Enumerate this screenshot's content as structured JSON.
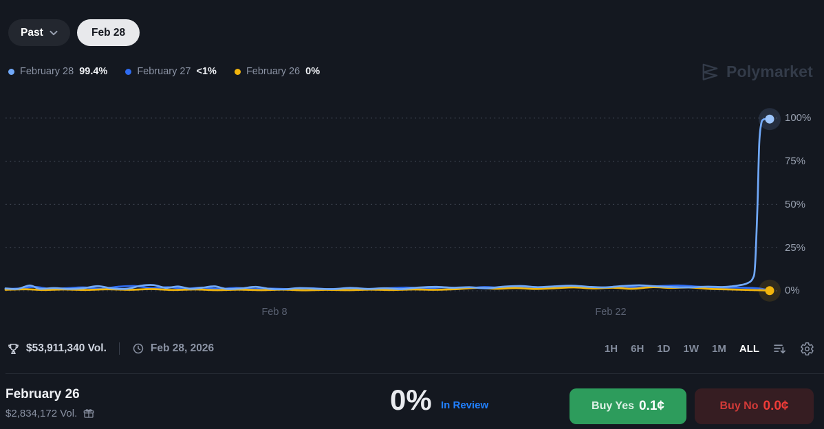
{
  "header": {
    "past_label": "Past",
    "date_pill": "Feb 28"
  },
  "legend": {
    "items": [
      {
        "label": "February 28",
        "value": "99.4%"
      },
      {
        "label": "February 27",
        "value": "<1%"
      },
      {
        "label": "February 26",
        "value": "0%"
      }
    ]
  },
  "watermark": {
    "brand": "Polymarket"
  },
  "chart_data": {
    "type": "line",
    "title": "Outcome probability over time",
    "x_axis": {
      "unit": "date (February day number, ALL range)",
      "domain_days": [
        -2.9,
        28.55
      ],
      "ticks": [
        {
          "day": 8,
          "label": "Feb 8"
        },
        {
          "day": 22,
          "label": "Feb 22"
        }
      ]
    },
    "y_axis": {
      "unit": "%",
      "range": [
        0,
        100
      ],
      "ticks": [
        100,
        75,
        50,
        25,
        0
      ],
      "tick_labels": [
        "100%",
        "75%",
        "50%",
        "25%",
        "0%"
      ],
      "grid": "dotted"
    },
    "legend_position": "top-left",
    "series": [
      {
        "name": "February 28",
        "color": "#70a8f8",
        "marker_color": "#9cc4fb",
        "halo": "rgba(143,184,252,0.14)",
        "final": 99.4,
        "end_marker": true,
        "points": [
          [
            -2.9,
            1.4
          ],
          [
            -2.4,
            1.1
          ],
          [
            -1.9,
            3.1
          ],
          [
            -1.5,
            1.2
          ],
          [
            -0.9,
            1.6
          ],
          [
            -0.3,
            1.1
          ],
          [
            0.3,
            1.5
          ],
          [
            0.9,
            2.7
          ],
          [
            1.5,
            1.4
          ],
          [
            2.1,
            1.2
          ],
          [
            2.7,
            3.0
          ],
          [
            3.2,
            3.3
          ],
          [
            3.7,
            1.7
          ],
          [
            4.2,
            2.5
          ],
          [
            4.7,
            1.2
          ],
          [
            5.2,
            1.8
          ],
          [
            5.7,
            2.6
          ],
          [
            6.2,
            1.1
          ],
          [
            6.8,
            1.4
          ],
          [
            7.4,
            2.3
          ],
          [
            8.0,
            1.1
          ],
          [
            8.6,
            0.9
          ],
          [
            9.2,
            1.6
          ],
          [
            9.9,
            1.2
          ],
          [
            10.6,
            1.0
          ],
          [
            11.3,
            1.7
          ],
          [
            12.0,
            1.1
          ],
          [
            12.7,
            1.5
          ],
          [
            13.4,
            1.0
          ],
          [
            14.1,
            1.9
          ],
          [
            14.8,
            2.3
          ],
          [
            15.5,
            1.8
          ],
          [
            16.2,
            2.1
          ],
          [
            16.9,
            1.5
          ],
          [
            17.6,
            2.4
          ],
          [
            18.3,
            2.8
          ],
          [
            19.0,
            2.1
          ],
          [
            19.7,
            2.6
          ],
          [
            20.4,
            3.0
          ],
          [
            21.1,
            2.3
          ],
          [
            21.8,
            2.0
          ],
          [
            22.5,
            2.8
          ],
          [
            23.2,
            3.2
          ],
          [
            23.9,
            2.6
          ],
          [
            24.6,
            2.1
          ],
          [
            25.3,
            2.0
          ],
          [
            26.0,
            2.4
          ],
          [
            26.6,
            2.2
          ],
          [
            27.0,
            2.6
          ],
          [
            27.3,
            3.2
          ],
          [
            27.6,
            4.2
          ],
          [
            27.85,
            7
          ],
          [
            27.95,
            15
          ],
          [
            28.05,
            50
          ],
          [
            28.12,
            85
          ],
          [
            28.2,
            96.5
          ],
          [
            28.3,
            99.2
          ],
          [
            28.55,
            99.4
          ]
        ]
      },
      {
        "name": "February 27",
        "color": "#2e6bf0",
        "marker_color": "#2e6bf0",
        "halo": "rgba(46,107,240,0.14)",
        "final": 0.4,
        "end_marker": false,
        "points": [
          [
            -2.9,
            1.0
          ],
          [
            -2.3,
            1.4
          ],
          [
            -1.7,
            2.3
          ],
          [
            -1.1,
            1.2
          ],
          [
            -0.4,
            1.5
          ],
          [
            0.3,
            2.0
          ],
          [
            1.0,
            1.2
          ],
          [
            1.7,
            2.3
          ],
          [
            2.4,
            2.8
          ],
          [
            3.1,
            1.6
          ],
          [
            3.8,
            2.1
          ],
          [
            4.5,
            1.2
          ],
          [
            5.2,
            1.9
          ],
          [
            5.9,
            1.1
          ],
          [
            6.6,
            1.7
          ],
          [
            7.3,
            1.0
          ],
          [
            8.0,
            1.3
          ],
          [
            8.8,
            1.0
          ],
          [
            9.6,
            1.5
          ],
          [
            10.4,
            1.0
          ],
          [
            11.2,
            1.3
          ],
          [
            12.0,
            0.9
          ],
          [
            12.8,
            1.5
          ],
          [
            13.6,
            1.9
          ],
          [
            14.4,
            1.5
          ],
          [
            15.2,
            2.0
          ],
          [
            16.0,
            1.4
          ],
          [
            16.8,
            2.2
          ],
          [
            17.6,
            1.7
          ],
          [
            18.4,
            2.4
          ],
          [
            19.2,
            2.0
          ],
          [
            20.0,
            2.7
          ],
          [
            20.8,
            2.2
          ],
          [
            21.6,
            1.8
          ],
          [
            22.4,
            2.5
          ],
          [
            23.2,
            2.0
          ],
          [
            24.0,
            2.7
          ],
          [
            24.8,
            3.1
          ],
          [
            25.6,
            2.4
          ],
          [
            26.4,
            1.9
          ],
          [
            27.1,
            1.9
          ],
          [
            27.7,
            1.7
          ],
          [
            28.1,
            1.4
          ],
          [
            28.35,
            0.8
          ],
          [
            28.55,
            0.4
          ]
        ]
      },
      {
        "name": "February 26",
        "color": "#f2b50d",
        "marker_color": "#f2b50d",
        "halo": "rgba(242,181,13,0.13)",
        "final": 0.0,
        "end_marker": true,
        "points": [
          [
            -2.9,
            0.6
          ],
          [
            -2.1,
            0.9
          ],
          [
            -1.3,
            0.5
          ],
          [
            -0.5,
            0.8
          ],
          [
            0.4,
            0.5
          ],
          [
            1.3,
            0.9
          ],
          [
            2.2,
            0.6
          ],
          [
            3.1,
            1.0
          ],
          [
            4.0,
            0.5
          ],
          [
            4.9,
            0.8
          ],
          [
            5.8,
            0.4
          ],
          [
            6.7,
            0.7
          ],
          [
            7.6,
            0.4
          ],
          [
            8.5,
            0.7
          ],
          [
            9.4,
            0.3
          ],
          [
            10.3,
            0.6
          ],
          [
            11.2,
            0.4
          ],
          [
            12.1,
            0.7
          ],
          [
            13.0,
            0.5
          ],
          [
            13.9,
            0.8
          ],
          [
            14.8,
            0.6
          ],
          [
            15.7,
            1.0
          ],
          [
            16.5,
            1.7
          ],
          [
            17.3,
            1.2
          ],
          [
            18.1,
            1.6
          ],
          [
            18.9,
            1.1
          ],
          [
            19.7,
            1.5
          ],
          [
            20.5,
            2.0
          ],
          [
            21.3,
            1.4
          ],
          [
            22.1,
            1.8
          ],
          [
            22.9,
            1.2
          ],
          [
            23.7,
            2.1
          ],
          [
            24.5,
            1.7
          ],
          [
            25.3,
            1.9
          ],
          [
            26.1,
            1.1
          ],
          [
            26.9,
            0.8
          ],
          [
            27.7,
            0.5
          ],
          [
            28.2,
            0.3
          ],
          [
            28.55,
            0.1
          ]
        ]
      }
    ]
  },
  "toolbar": {
    "volume": "$53,911,340 Vol.",
    "date": "Feb 28, 2026",
    "ranges": [
      "1H",
      "6H",
      "1D",
      "1W",
      "1M",
      "ALL"
    ],
    "selected_range": "ALL"
  },
  "outcome": {
    "title": "February 26",
    "volume": "$2,834,172 Vol.",
    "chance": "0%",
    "status": "In Review",
    "buy_yes_label": "Buy Yes",
    "buy_yes_price": "0.1¢",
    "buy_no_label": "Buy No",
    "buy_no_price": "0.0¢"
  },
  "colors": {
    "background": "#141820",
    "green": "#2d9c5c",
    "red_text": "#f13c38",
    "red_bg": "#361d22",
    "status_blue": "#2180ff",
    "grid": "#424956"
  }
}
